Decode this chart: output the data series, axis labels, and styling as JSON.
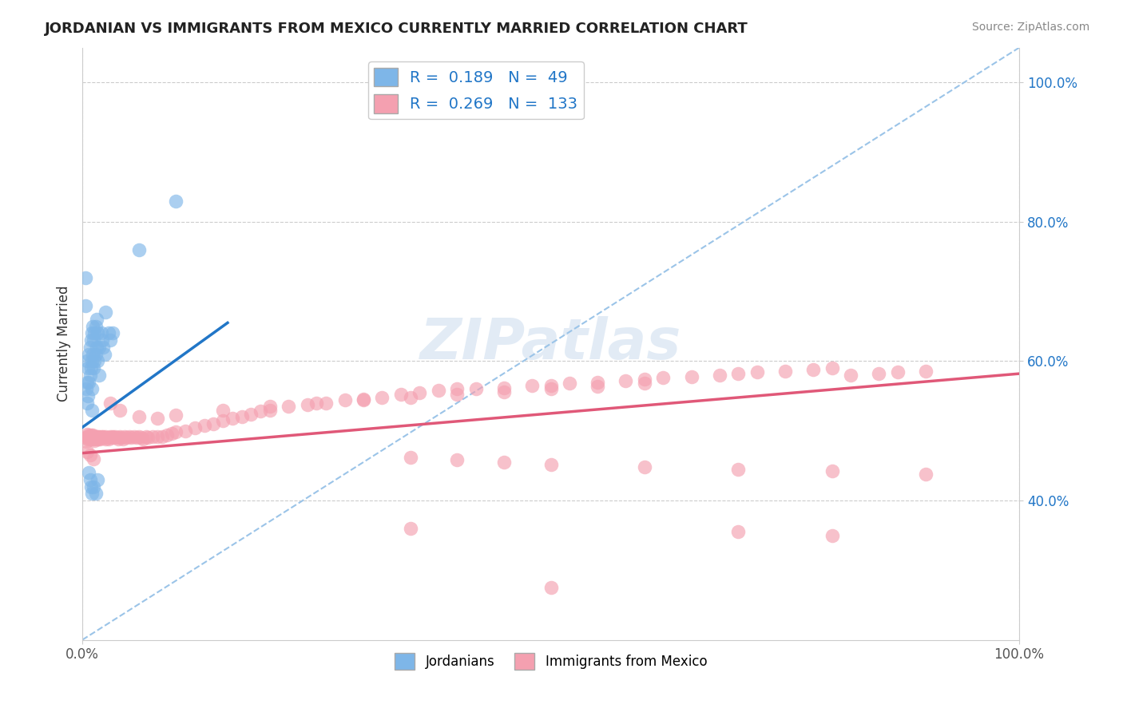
{
  "title": "JORDANIAN VS IMMIGRANTS FROM MEXICO CURRENTLY MARRIED CORRELATION CHART",
  "source_text": "Source: ZipAtlas.com",
  "ylabel": "Currently Married",
  "xmin": 0.0,
  "xmax": 1.0,
  "ymin": 0.2,
  "ymax": 1.05,
  "ytick_vals": [
    0.4,
    0.6,
    0.8,
    1.0
  ],
  "grid_color": "#cccccc",
  "background_color": "#ffffff",
  "jordanian_color": "#7EB6E8",
  "mexico_color": "#F4A0B0",
  "jordan_line_color": "#2176C7",
  "mexico_line_color": "#E05878",
  "diag_line_color": "#9BC4E8",
  "R_jordan": 0.189,
  "N_jordan": 49,
  "R_mexico": 0.269,
  "N_mexico": 133,
  "jordan_scatter_x": [
    0.003,
    0.003,
    0.004,
    0.005,
    0.005,
    0.005,
    0.006,
    0.006,
    0.007,
    0.007,
    0.008,
    0.008,
    0.009,
    0.009,
    0.01,
    0.01,
    0.01,
    0.01,
    0.011,
    0.011,
    0.012,
    0.012,
    0.013,
    0.013,
    0.014,
    0.014,
    0.015,
    0.015,
    0.016,
    0.016,
    0.018,
    0.018,
    0.02,
    0.021,
    0.022,
    0.024,
    0.025,
    0.028,
    0.03,
    0.032,
    0.007,
    0.008,
    0.009,
    0.01,
    0.012,
    0.014,
    0.016,
    0.06,
    0.1
  ],
  "jordan_scatter_y": [
    0.68,
    0.72,
    0.56,
    0.6,
    0.57,
    0.54,
    0.59,
    0.55,
    0.61,
    0.57,
    0.62,
    0.58,
    0.63,
    0.59,
    0.64,
    0.6,
    0.56,
    0.53,
    0.65,
    0.61,
    0.63,
    0.59,
    0.64,
    0.6,
    0.65,
    0.61,
    0.66,
    0.62,
    0.64,
    0.6,
    0.62,
    0.58,
    0.64,
    0.63,
    0.62,
    0.61,
    0.67,
    0.64,
    0.63,
    0.64,
    0.44,
    0.43,
    0.42,
    0.41,
    0.42,
    0.41,
    0.43,
    0.76,
    0.83
  ],
  "mexico_scatter_x": [
    0.003,
    0.004,
    0.005,
    0.006,
    0.006,
    0.007,
    0.007,
    0.008,
    0.008,
    0.009,
    0.009,
    0.01,
    0.01,
    0.011,
    0.011,
    0.012,
    0.012,
    0.013,
    0.013,
    0.014,
    0.015,
    0.015,
    0.016,
    0.016,
    0.017,
    0.018,
    0.018,
    0.019,
    0.02,
    0.02,
    0.022,
    0.023,
    0.025,
    0.025,
    0.027,
    0.028,
    0.03,
    0.03,
    0.032,
    0.033,
    0.035,
    0.037,
    0.038,
    0.04,
    0.041,
    0.043,
    0.045,
    0.047,
    0.05,
    0.052,
    0.055,
    0.058,
    0.06,
    0.063,
    0.065,
    0.068,
    0.07,
    0.075,
    0.08,
    0.085,
    0.09,
    0.095,
    0.1,
    0.11,
    0.12,
    0.13,
    0.14,
    0.15,
    0.16,
    0.17,
    0.18,
    0.19,
    0.2,
    0.22,
    0.24,
    0.26,
    0.28,
    0.3,
    0.32,
    0.34,
    0.36,
    0.38,
    0.4,
    0.42,
    0.45,
    0.48,
    0.5,
    0.52,
    0.55,
    0.58,
    0.6,
    0.62,
    0.65,
    0.68,
    0.7,
    0.72,
    0.75,
    0.78,
    0.8,
    0.82,
    0.85,
    0.87,
    0.9,
    0.03,
    0.04,
    0.06,
    0.08,
    0.1,
    0.15,
    0.2,
    0.25,
    0.3,
    0.35,
    0.4,
    0.45,
    0.5,
    0.55,
    0.6,
    0.35,
    0.4,
    0.45,
    0.5,
    0.6,
    0.7,
    0.8,
    0.9,
    0.35,
    0.5,
    0.7,
    0.8,
    0.005,
    0.008,
    0.012
  ],
  "mexico_scatter_y": [
    0.49,
    0.485,
    0.495,
    0.488,
    0.492,
    0.49,
    0.494,
    0.488,
    0.492,
    0.49,
    0.494,
    0.488,
    0.492,
    0.49,
    0.494,
    0.488,
    0.492,
    0.49,
    0.486,
    0.492,
    0.49,
    0.488,
    0.492,
    0.49,
    0.488,
    0.492,
    0.49,
    0.488,
    0.492,
    0.49,
    0.492,
    0.49,
    0.492,
    0.488,
    0.49,
    0.488,
    0.492,
    0.49,
    0.492,
    0.49,
    0.492,
    0.49,
    0.488,
    0.492,
    0.49,
    0.488,
    0.492,
    0.49,
    0.492,
    0.49,
    0.492,
    0.49,
    0.492,
    0.49,
    0.488,
    0.492,
    0.49,
    0.492,
    0.492,
    0.492,
    0.494,
    0.496,
    0.498,
    0.5,
    0.504,
    0.508,
    0.51,
    0.514,
    0.518,
    0.52,
    0.524,
    0.528,
    0.53,
    0.535,
    0.538,
    0.54,
    0.544,
    0.546,
    0.548,
    0.552,
    0.555,
    0.558,
    0.56,
    0.56,
    0.562,
    0.565,
    0.565,
    0.568,
    0.57,
    0.572,
    0.574,
    0.576,
    0.578,
    0.58,
    0.582,
    0.584,
    0.586,
    0.588,
    0.59,
    0.58,
    0.582,
    0.584,
    0.586,
    0.54,
    0.53,
    0.52,
    0.518,
    0.522,
    0.53,
    0.535,
    0.54,
    0.544,
    0.548,
    0.552,
    0.556,
    0.56,
    0.564,
    0.568,
    0.462,
    0.458,
    0.455,
    0.452,
    0.448,
    0.445,
    0.442,
    0.438,
    0.36,
    0.275,
    0.355,
    0.35,
    0.47,
    0.465,
    0.46
  ],
  "jordan_line_x": [
    0.0,
    0.155
  ],
  "jordan_line_y_start": 0.505,
  "jordan_line_y_end": 0.655,
  "mexico_line_x": [
    0.0,
    1.0
  ],
  "mexico_line_y_start": 0.468,
  "mexico_line_y_end": 0.582,
  "diag_line_x": [
    0.0,
    1.0
  ],
  "diag_line_y": [
    0.2,
    1.05
  ]
}
